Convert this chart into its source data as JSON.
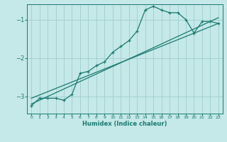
{
  "xlabel": "Humidex (Indice chaleur)",
  "ylabel": "",
  "bg_color": "#c5e8e8",
  "line_color": "#1a7a70",
  "grid_color": "#9fcece",
  "xlim": [
    -0.5,
    23.5
  ],
  "ylim": [
    -3.45,
    -0.6
  ],
  "yticks": [
    -3,
    -2,
    -1
  ],
  "xticks": [
    0,
    1,
    2,
    3,
    4,
    5,
    6,
    7,
    8,
    9,
    10,
    11,
    12,
    13,
    14,
    15,
    16,
    17,
    18,
    19,
    20,
    21,
    22,
    23
  ],
  "zigzag_x": [
    0,
    1,
    2,
    3,
    4,
    5,
    6,
    7,
    8,
    9,
    10,
    11,
    12,
    13,
    14,
    15,
    16,
    17,
    18,
    19,
    20,
    21,
    22,
    23
  ],
  "zigzag_y": [
    -3.25,
    -3.05,
    -3.05,
    -3.05,
    -3.1,
    -2.95,
    -2.4,
    -2.35,
    -2.2,
    -2.1,
    -1.85,
    -1.7,
    -1.55,
    -1.3,
    -0.75,
    -0.65,
    -0.75,
    -0.82,
    -0.82,
    -1.0,
    -1.35,
    -1.05,
    -1.05,
    -1.1
  ],
  "line1_x": [
    0,
    23
  ],
  "line1_y": [
    -3.2,
    -0.95
  ],
  "line2_x": [
    0,
    23
  ],
  "line2_y": [
    -3.05,
    -1.1
  ],
  "xlabel_fontsize": 6,
  "ytick_fontsize": 6,
  "xtick_fontsize": 4.5
}
